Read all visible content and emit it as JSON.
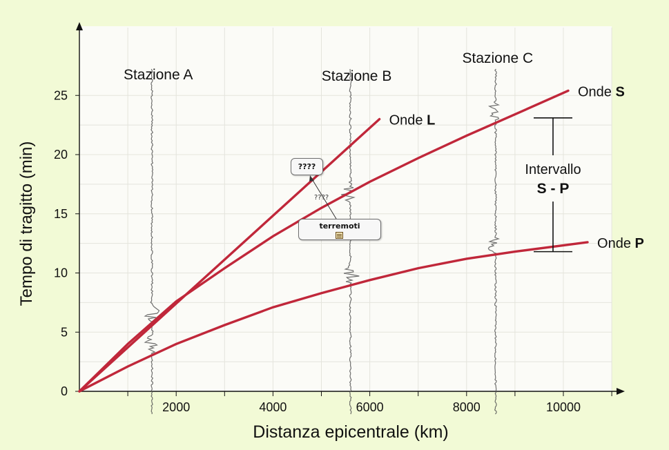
{
  "chart_data": {
    "type": "line",
    "xlabel": "Distanza epicentrale (km)",
    "ylabel": "Tempo di tragitto (min)",
    "xlim": [
      0,
      11000
    ],
    "ylim": [
      0,
      27
    ],
    "x_ticks": [
      2000,
      4000,
      6000,
      8000,
      10000
    ],
    "y_ticks": [
      0,
      5,
      10,
      15,
      20,
      25
    ],
    "grid": true,
    "series": [
      {
        "name": "Onde L",
        "label_prefix": "Onde",
        "label_letter": "L",
        "color": "#c0273a",
        "x": [
          0,
          6200
        ],
        "y": [
          0,
          23
        ]
      },
      {
        "name": "Onde S",
        "label_prefix": "Onde",
        "label_letter": "S",
        "color": "#c0273a",
        "x": [
          0,
          1000,
          2000,
          3000,
          4000,
          5000,
          6000,
          7000,
          8000,
          9000,
          10100
        ],
        "y": [
          0,
          4,
          7.6,
          10.4,
          13.1,
          15.5,
          17.7,
          19.7,
          21.6,
          23.4,
          25.4
        ]
      },
      {
        "name": "Onde P",
        "label_prefix": "Onde",
        "label_letter": "P",
        "color": "#c0273a",
        "x": [
          0,
          1000,
          2000,
          3000,
          4000,
          5000,
          6000,
          7000,
          8000,
          9000,
          10500
        ],
        "y": [
          0,
          2.1,
          4.0,
          5.6,
          7.1,
          8.3,
          9.4,
          10.4,
          11.2,
          11.8,
          12.6
        ]
      }
    ],
    "stations": [
      {
        "label": "Stazione A",
        "x": 1500,
        "amplitude_bursts": [
          4,
          6.5
        ]
      },
      {
        "label": "Stazione B",
        "x": 5600,
        "amplitude_bursts": [
          9.8,
          16.7
        ]
      },
      {
        "label": "Stazione C",
        "x": 8600,
        "amplitude_bursts": [
          12.2,
          23.7
        ]
      }
    ],
    "interval_annotation": {
      "line1": "Intervallo",
      "line2": "S - P",
      "from": 11.8,
      "to": 23.1
    }
  },
  "callouts": {
    "unknown": "????",
    "link_label": "????",
    "terremoti": "terremoti"
  }
}
